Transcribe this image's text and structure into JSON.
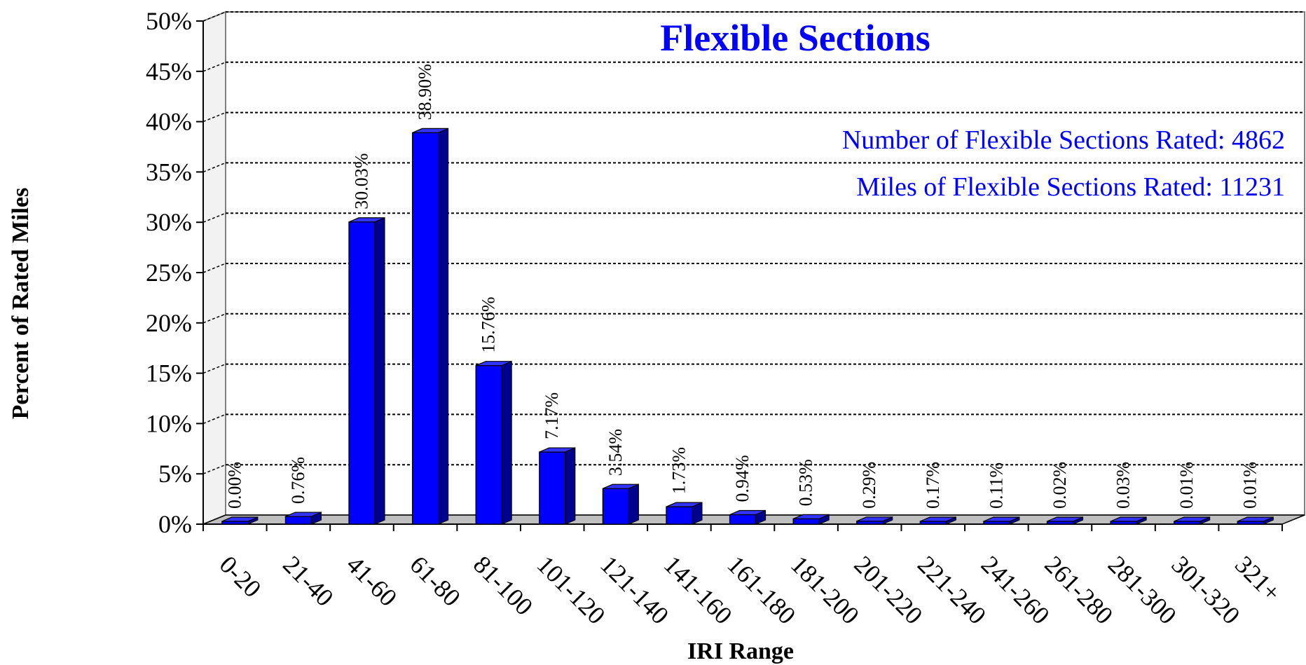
{
  "chart_data": {
    "type": "bar",
    "title": "Flexible Sections",
    "xlabel": "IRI Range",
    "ylabel": "Percent of Rated Miles",
    "ylim": [
      0,
      50
    ],
    "yticks": [
      "0%",
      "5%",
      "10%",
      "15%",
      "20%",
      "25%",
      "30%",
      "35%",
      "40%",
      "45%",
      "50%"
    ],
    "grid": true,
    "categories": [
      "0-20",
      "21-40",
      "41-60",
      "61-80",
      "81-100",
      "101-120",
      "121-140",
      "141-160",
      "161-180",
      "181-200",
      "201-220",
      "221-240",
      "241-260",
      "261-280",
      "281-300",
      "301-320",
      "321+"
    ],
    "values": [
      0.0,
      0.76,
      30.03,
      38.9,
      15.76,
      7.17,
      3.54,
      1.73,
      0.94,
      0.53,
      0.29,
      0.17,
      0.11,
      0.02,
      0.03,
      0.01,
      0.01
    ],
    "data_labels": [
      "0.00%",
      "0.76%",
      "30.03%",
      "38.90%",
      "15.76%",
      "7.17%",
      "3.54%",
      "1.73%",
      "0.94%",
      "0.53%",
      "0.29%",
      "0.17%",
      "0.11%",
      "0.02%",
      "0.03%",
      "0.01%",
      "0.01%"
    ],
    "annotations": [
      "Number of Flexible Sections Rated: 4862",
      "Miles of Flexible Sections Rated: 11231"
    ],
    "colors": {
      "bar_front": "#0000ff",
      "bar_side": "#00008f",
      "bar_top": "#3333ff",
      "title": "#0000ff",
      "annotation": "#0000ff",
      "floor": "#bfbfbf"
    }
  }
}
